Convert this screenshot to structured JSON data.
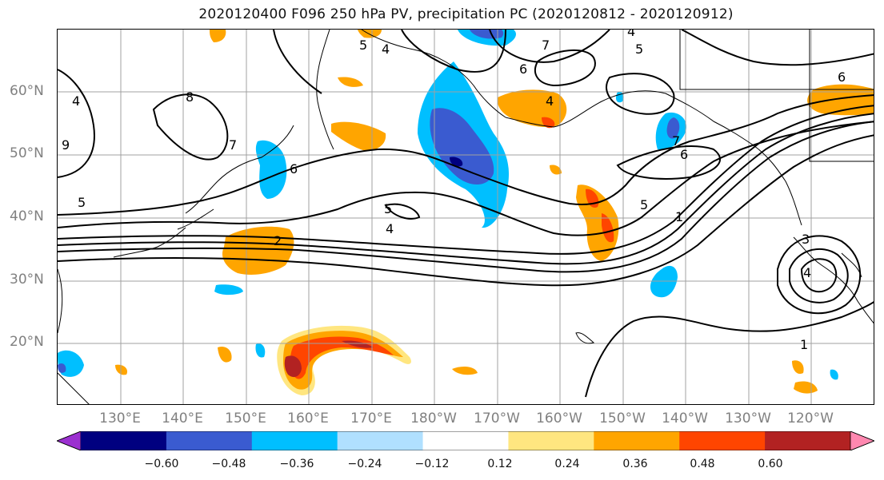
{
  "title": "2020120400 F096 250 hPa PV, precipitation PC (2020120812 - 2020120912)",
  "lat_labels": [
    "60°N",
    "50°N",
    "40°N",
    "30°N",
    "20°N"
  ],
  "lon_labels": [
    "130°E",
    "140°E",
    "150°E",
    "160°E",
    "170°E",
    "180°W",
    "170°W",
    "160°W",
    "150°W",
    "140°W",
    "130°W",
    "120°W"
  ],
  "colorbar": {
    "ticks": [
      "−0.60",
      "−0.48",
      "−0.36",
      "−0.24",
      "−0.12",
      "0.12",
      "0.24",
      "0.36",
      "0.48",
      "0.60"
    ],
    "colors": [
      "#9b30d0",
      "#000080",
      "#3a5bd0",
      "#00bfff",
      "#b0e0ff",
      "#ffffff",
      "#ffe680",
      "#ffa500",
      "#ff4500",
      "#b22222",
      "#ff88b0"
    ]
  },
  "contour_labels": [
    "4",
    "5",
    "4",
    "8",
    "7",
    "9",
    "5",
    "6",
    "5",
    "4",
    "2",
    "4",
    "7",
    "6",
    "6",
    "5",
    "1",
    "6",
    "7",
    "3",
    "4",
    "1",
    "5",
    "4"
  ],
  "map_content": {
    "field": "250 hPa PV",
    "shading": "precipitation PC",
    "colors": {
      "negative_strong": "#000080",
      "negative": "#00bfff",
      "positive": "#ffa500",
      "positive_strong": "#b22222"
    }
  }
}
